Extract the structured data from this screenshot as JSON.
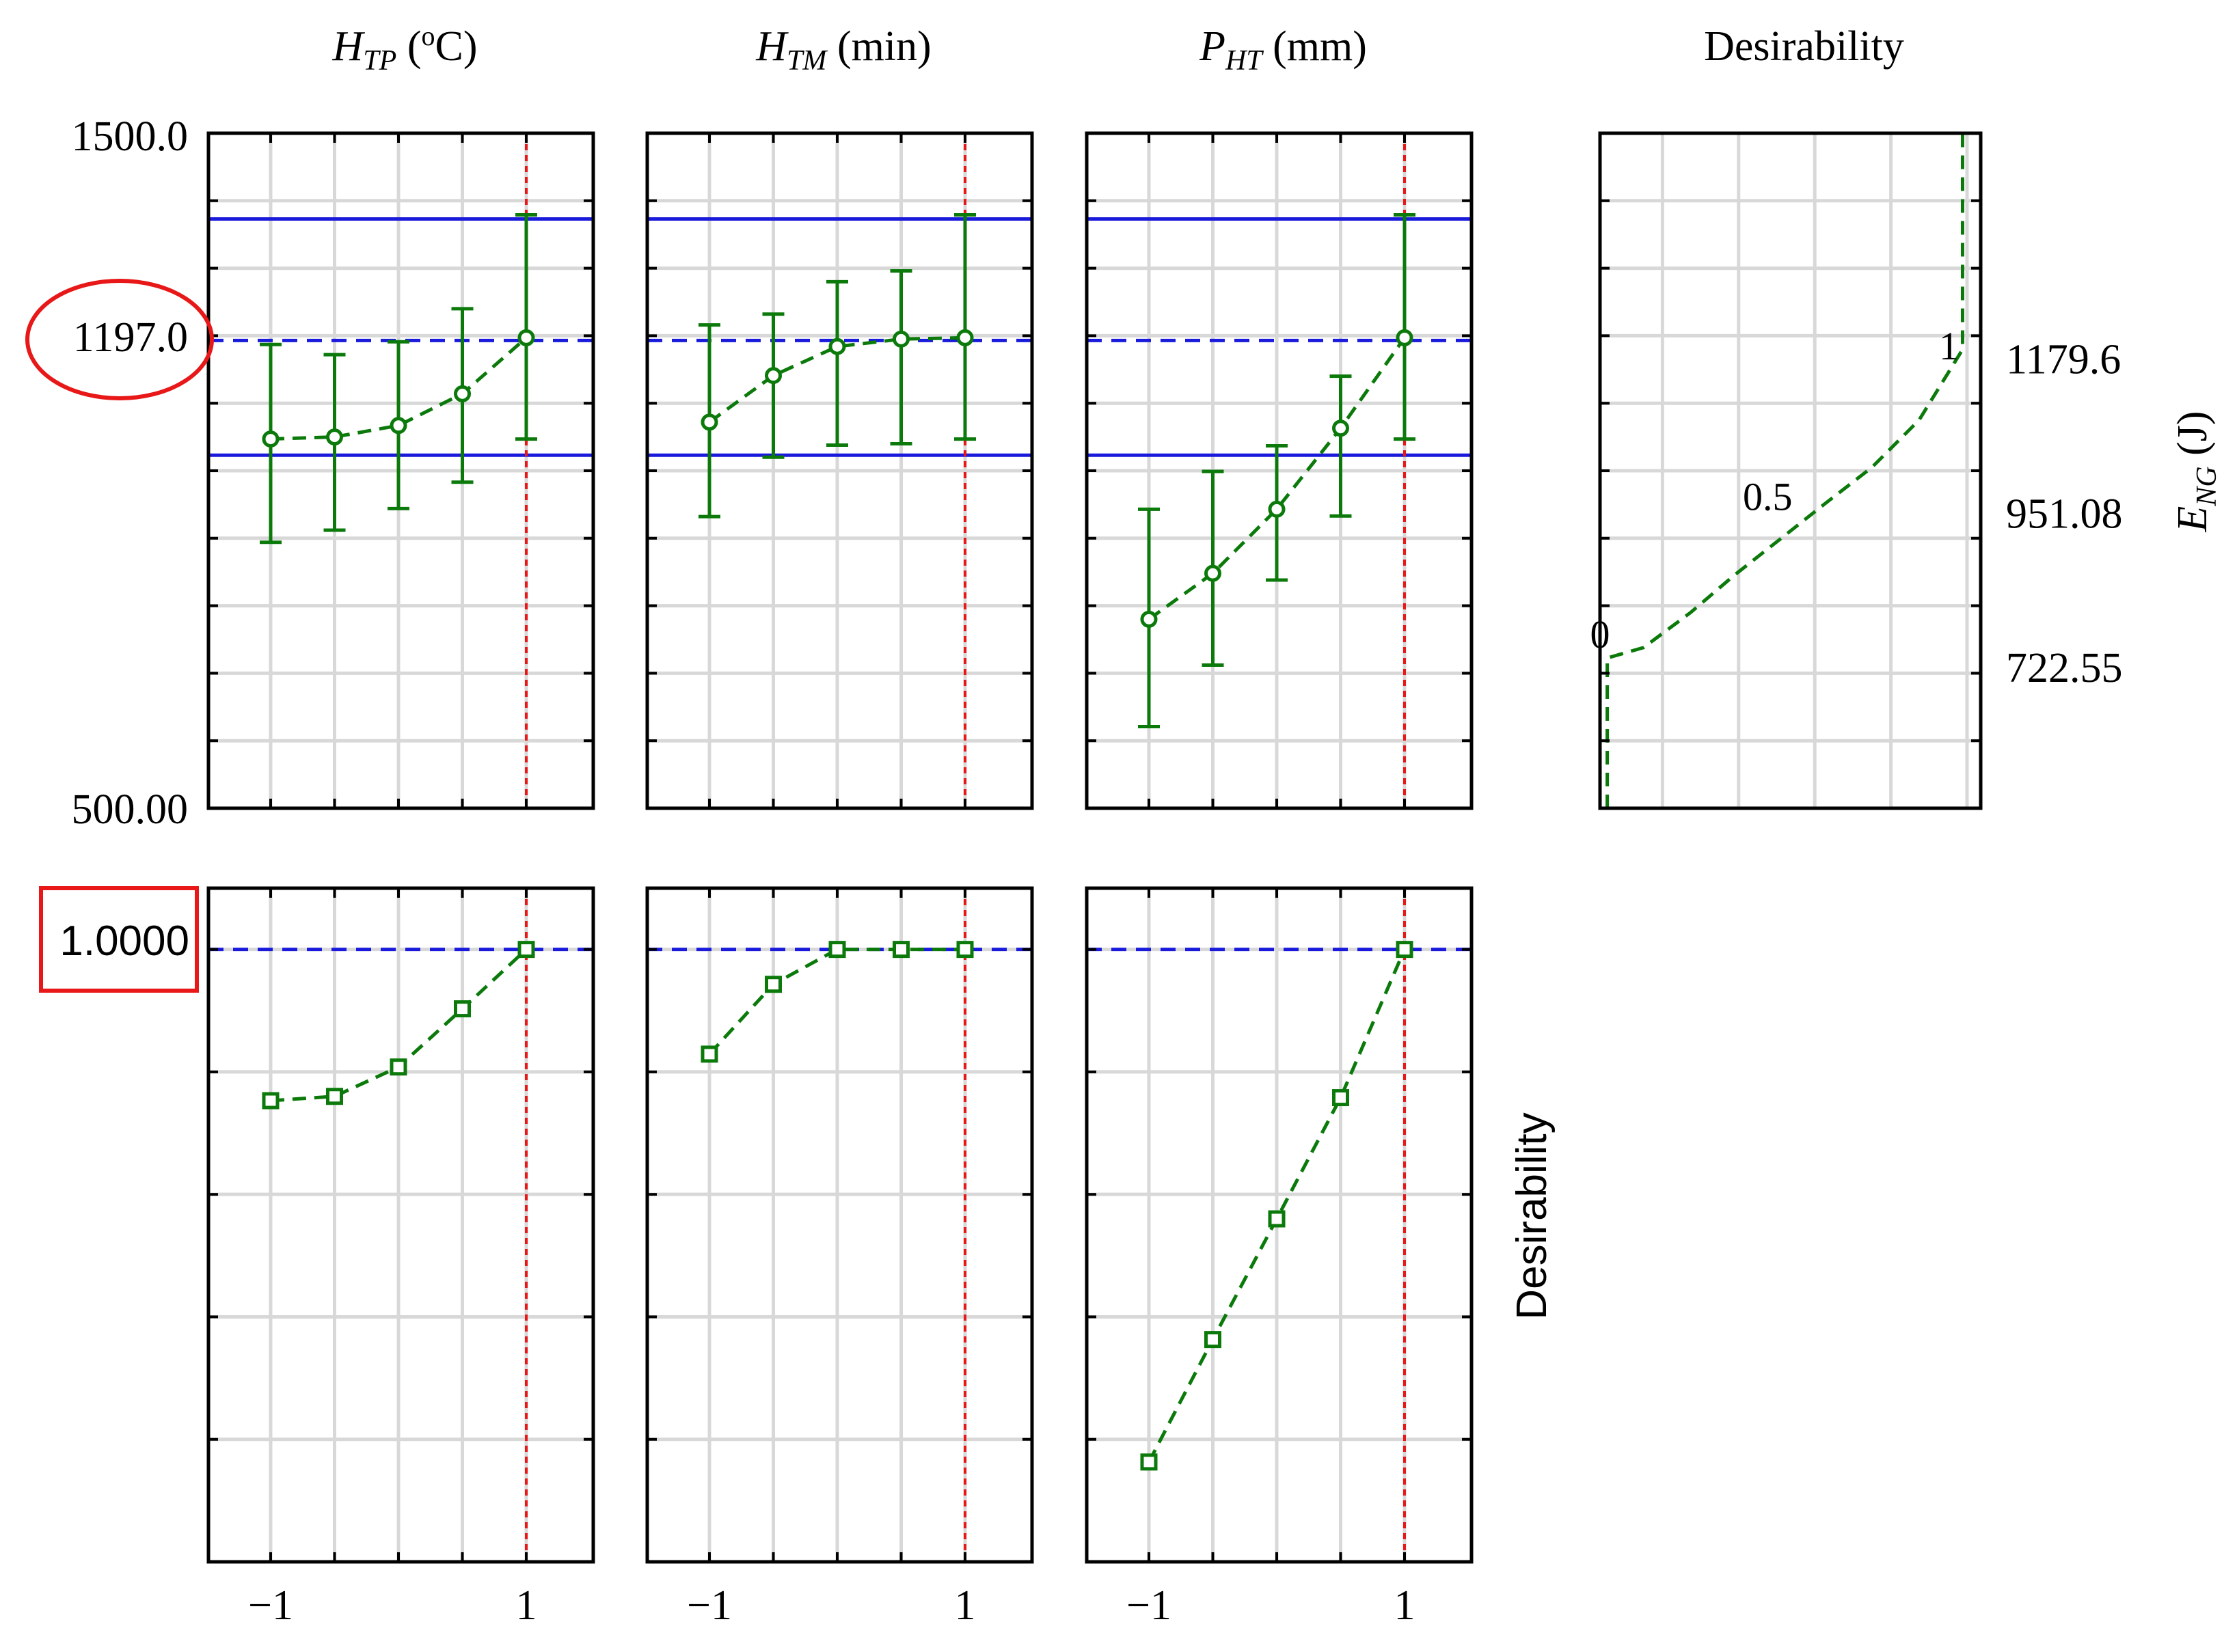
{
  "colors": {
    "green": "#0b7a0b",
    "blue": "#1a1adc",
    "red": "#e81818",
    "grid": "#d8d8d8",
    "frame": "#000000"
  },
  "chart_data": [
    {
      "type": "line",
      "panel": "response-htp",
      "title_main": "H",
      "title_sub": "TP",
      "title_unit": "(°C)",
      "title_sup": "o",
      "title_unit_rest": "C)",
      "title_open": "(",
      "x": [
        -1,
        -0.5,
        0,
        0.5,
        1
      ],
      "y": [
        1047,
        1050,
        1067,
        1114,
        1197
      ],
      "error_low": [
        894,
        912,
        944,
        983,
        1047
      ],
      "error_high": [
        1187,
        1172,
        1191,
        1240,
        1379
      ],
      "ylim": [
        500,
        1500
      ],
      "reference_lines": {
        "upper": 1373,
        "target": 1193,
        "lower": 1023
      },
      "current_x": 1
    },
    {
      "type": "line",
      "panel": "response-htm",
      "title_main": "H",
      "title_sub": "TM",
      "title_unit": "(min)",
      "x": [
        -1,
        -0.5,
        0,
        0.5,
        1
      ],
      "y": [
        1072,
        1141,
        1184,
        1195,
        1197
      ],
      "error_low": [
        932,
        1020,
        1038,
        1040,
        1047
      ],
      "error_high": [
        1216,
        1232,
        1280,
        1296,
        1379
      ],
      "ylim": [
        500,
        1500
      ],
      "reference_lines": {
        "upper": 1373,
        "target": 1193,
        "lower": 1023
      },
      "current_x": 1
    },
    {
      "type": "line",
      "panel": "response-pht",
      "title_main": "P",
      "title_sub": "HT",
      "title_unit": "(mm)",
      "x": [
        -1,
        -0.5,
        0,
        0.5,
        1
      ],
      "y": [
        780,
        848,
        943,
        1063,
        1197
      ],
      "error_low": [
        621,
        712,
        838,
        933,
        1047
      ],
      "error_high": [
        943,
        999,
        1037,
        1140,
        1379
      ],
      "ylim": [
        500,
        1500
      ],
      "reference_lines": {
        "upper": 1373,
        "target": 1193,
        "lower": 1023
      },
      "current_x": 1
    },
    {
      "type": "line",
      "panel": "desirability-htp",
      "x": [
        -1,
        -0.5,
        0,
        0.5,
        1
      ],
      "y": [
        0.753,
        0.76,
        0.808,
        0.903,
        1.0
      ],
      "ylim": [
        0.0,
        1.1
      ],
      "target_line": 1.0,
      "current_x": 1
    },
    {
      "type": "line",
      "panel": "desirability-htm",
      "x": [
        -1,
        -0.5,
        0,
        0.5,
        1
      ],
      "y": [
        0.829,
        0.943,
        1.0,
        1.0,
        1.0
      ],
      "ylim": [
        0.0,
        1.1
      ],
      "target_line": 1.0,
      "current_x": 1
    },
    {
      "type": "line",
      "panel": "desirability-pht",
      "x": [
        -1,
        -0.5,
        0,
        0.5,
        1
      ],
      "y": [
        0.163,
        0.363,
        0.56,
        0.758,
        1.0
      ],
      "ylim": [
        0.0,
        1.1
      ],
      "target_line": 1.0,
      "current_x": 1
    },
    {
      "type": "line",
      "panel": "desirability-function",
      "title": "Desirability",
      "x": [
        0.02,
        0.02,
        0.12,
        0.25,
        0.37,
        0.5,
        0.62,
        0.75,
        0.88,
        1.0,
        1.0
      ],
      "y": [
        500,
        722.55,
        738,
        790,
        845,
        900,
        951,
        1005,
        1075,
        1179.6,
        1500
      ],
      "xlim": [
        0,
        1.05
      ],
      "ylim": [
        500,
        1500
      ],
      "curve_labels": [
        {
          "text": "0",
          "x": 0.0,
          "y": 758
        },
        {
          "text": "0.5",
          "x": 0.5,
          "y": 962
        },
        {
          "text": "1",
          "x": 1.0,
          "y": 1185
        }
      ],
      "right_ticks": [
        "1179.6",
        "951.08",
        "722.55"
      ],
      "right_tick_values": [
        1179.6,
        951.08,
        722.55
      ],
      "ylabel_main": "E",
      "ylabel_sub": "NG",
      "ylabel_unit": "(J)"
    }
  ],
  "axes": {
    "top_ymax_label": "1500.0",
    "top_ymin_label": "500.00",
    "current_value_label": "1197.0",
    "current_desirability_label": "1.0000",
    "x_tick_labels": [
      "−1",
      "1"
    ],
    "bottom_ylabel": "Desirability"
  }
}
